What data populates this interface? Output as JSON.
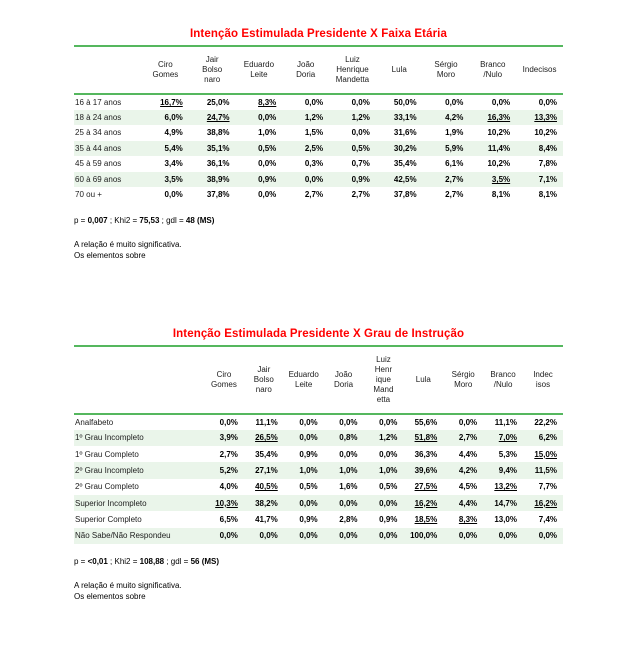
{
  "report": {
    "colors": {
      "title_red": "#ff0000",
      "rule_green": "#55b75e",
      "row_stripe": "#eaf5ea",
      "highlight_blue": "#4848d8",
      "highlight_pink": "#ee64b4"
    },
    "tables": [
      {
        "id": "faixa-etaria",
        "title": "Intenção Estimulada Presidente X Faixa Etária",
        "columns": [
          [
            "Ciro",
            "Gomes"
          ],
          [
            "Jair",
            "Bolso",
            "naro"
          ],
          [
            "Eduardo",
            "Leite"
          ],
          [
            "João",
            "Doria"
          ],
          [
            "Luiz",
            "Henrique",
            "Mandetta"
          ],
          [
            "Lula"
          ],
          [
            "Sérgio",
            "Moro"
          ],
          [
            "Branco",
            "/Nulo"
          ],
          [
            "Indecisos"
          ]
        ],
        "rows": [
          {
            "label": "16 à 17 anos",
            "cells": [
              {
                "v": "16,7%",
                "c": "blue"
              },
              "25,0%",
              {
                "v": "8,3%",
                "c": "blue"
              },
              "0,0%",
              "0,0%",
              "50,0%",
              "0,0%",
              "0,0%",
              "0,0%"
            ]
          },
          {
            "label": "18 à 24 anos",
            "cells": [
              "6,0%",
              {
                "v": "24,7%",
                "c": "pink"
              },
              "0,0%",
              "1,2%",
              "1,2%",
              "33,1%",
              "4,2%",
              {
                "v": "16,3%",
                "c": "blue"
              },
              {
                "v": "13,3%",
                "c": "blue"
              }
            ]
          },
          {
            "label": "25 à 34 anos",
            "cells": [
              "4,9%",
              "38,8%",
              "1,0%",
              "1,5%",
              "0,0%",
              "31,6%",
              "1,9%",
              "10,2%",
              "10,2%"
            ]
          },
          {
            "label": "35 à 44 anos",
            "cells": [
              "5,4%",
              "35,1%",
              "0,5%",
              "2,5%",
              "0,5%",
              "30,2%",
              "5,9%",
              "11,4%",
              "8,4%"
            ]
          },
          {
            "label": "45 à 59 anos",
            "cells": [
              "3,4%",
              "36,1%",
              "0,0%",
              "0,3%",
              "0,7%",
              "35,4%",
              "6,1%",
              "10,2%",
              "7,8%"
            ]
          },
          {
            "label": "60 à 69 anos",
            "cells": [
              "3,5%",
              "38,9%",
              "0,9%",
              "0,0%",
              "0,9%",
              "42,5%",
              "2,7%",
              {
                "v": "3,5%",
                "c": "pink"
              },
              "7,1%"
            ]
          },
          {
            "label": "70 ou +",
            "cells": [
              "0,0%",
              "37,8%",
              "0,0%",
              "2,7%",
              "2,7%",
              "37,8%",
              "2,7%",
              "8,1%",
              "8,1%"
            ]
          }
        ],
        "stats_parts": [
          {
            "t": "p = "
          },
          {
            "t": "0,007",
            "b": true
          },
          {
            "t": " ; Khi2 = "
          },
          {
            "t": "75,53",
            "b": true
          },
          {
            "t": " ; gdl = "
          },
          {
            "t": "48",
            "b": true
          },
          {
            "t": " (MS)",
            "b": true
          }
        ],
        "note_significance": "A relação é muito significativa.",
        "note_elements": "Os elementos sobre"
      },
      {
        "id": "grau-instrucao",
        "title": "Intenção Estimulada Presidente X Grau de Instrução",
        "columns": [
          [
            "Ciro",
            "Gomes"
          ],
          [
            "Jair",
            "Bolso",
            "naro"
          ],
          [
            "Eduardo",
            "Leite"
          ],
          [
            "João",
            "Doria"
          ],
          [
            "Luiz",
            "Henr",
            "ique",
            "Mand",
            "etta"
          ],
          [
            "Lula"
          ],
          [
            "Sérgio",
            "Moro"
          ],
          [
            "Branco",
            "/Nulo"
          ],
          [
            "Indec",
            "isos"
          ]
        ],
        "rows": [
          {
            "label": "Analfabeto",
            "cells": [
              "0,0%",
              "11,1%",
              "0,0%",
              "0,0%",
              "0,0%",
              "55,6%",
              "0,0%",
              "11,1%",
              "22,2%"
            ]
          },
          {
            "label": "1º Grau Incompleto",
            "cells": [
              "3,9%",
              {
                "v": "26,5%",
                "c": "pink"
              },
              "0,0%",
              "0,8%",
              "1,2%",
              {
                "v": "51,8%",
                "c": "blue"
              },
              "2,7%",
              {
                "v": "7,0%",
                "c": "pink"
              },
              "6,2%"
            ]
          },
          {
            "label": "1º Grau Completo",
            "cells": [
              "2,7%",
              "35,4%",
              "0,9%",
              "0,0%",
              "0,0%",
              "36,3%",
              "4,4%",
              "5,3%",
              {
                "v": "15,0%",
                "c": "blue"
              }
            ]
          },
          {
            "label": "2º Grau Incompleto",
            "cells": [
              "5,2%",
              "27,1%",
              "1,0%",
              "1,0%",
              "1,0%",
              "39,6%",
              "4,2%",
              "9,4%",
              "11,5%"
            ]
          },
          {
            "label": "2º Grau Completo",
            "cells": [
              "4,0%",
              {
                "v": "40,5%",
                "c": "blue"
              },
              "0,5%",
              "1,6%",
              "0,5%",
              {
                "v": "27,5%",
                "c": "pink"
              },
              "4,5%",
              {
                "v": "13,2%",
                "c": "blue"
              },
              "7,7%"
            ]
          },
          {
            "label": "Superior Incompleto",
            "cells": [
              {
                "v": "10,3%",
                "c": "blue"
              },
              "38,2%",
              "0,0%",
              "0,0%",
              "0,0%",
              {
                "v": "16,2%",
                "c": "pink"
              },
              "4,4%",
              "14,7%",
              {
                "v": "16,2%",
                "c": "blue"
              }
            ]
          },
          {
            "label": "Superior Completo",
            "cells": [
              "6,5%",
              "41,7%",
              "0,9%",
              "2,8%",
              "0,9%",
              {
                "v": "18,5%",
                "c": "pink"
              },
              {
                "v": "8,3%",
                "c": "blue"
              },
              "13,0%",
              "7,4%"
            ]
          },
          {
            "label": "Não Sabe/Não Respondeu",
            "cells": [
              "0,0%",
              "0,0%",
              "0,0%",
              "0,0%",
              "0,0%",
              "100,0%",
              "0,0%",
              "0,0%",
              "0,0%"
            ]
          }
        ],
        "stats_parts": [
          {
            "t": "p = "
          },
          {
            "t": "<0,01",
            "b": true
          },
          {
            "t": " ; Khi2 = "
          },
          {
            "t": "108,88",
            "b": true
          },
          {
            "t": " ; gdl = "
          },
          {
            "t": "56",
            "b": true
          },
          {
            "t": " (MS)",
            "b": true
          }
        ],
        "note_significance": "A relação é muito significativa.",
        "note_elements": "Os elementos sobre"
      }
    ]
  }
}
